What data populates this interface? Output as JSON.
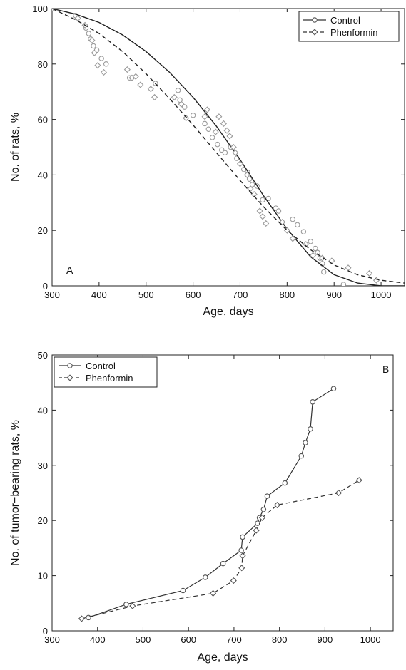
{
  "chart_data": [
    {
      "panel_label": "A",
      "type": "scatter",
      "xlabel": "Age, days",
      "ylabel": "No. of rats, %",
      "xlim": [
        300,
        1050
      ],
      "ylim": [
        0,
        100
      ],
      "x_ticks": [
        300,
        400,
        500,
        600,
        700,
        800,
        900,
        1000
      ],
      "y_ticks": [
        0,
        20,
        40,
        60,
        80,
        100
      ],
      "grid": false,
      "legend": {
        "placement": "top-right",
        "entries": [
          "Control",
          "Phenformin"
        ]
      },
      "colors": {
        "control": "#333333",
        "phenformin": "#333333",
        "points": "#8a8a8a"
      },
      "series": [
        {
          "name": "Control",
          "marker": "circle",
          "line": "solid",
          "points": [
            [
              300,
              100
            ],
            [
              350,
              97.5
            ],
            [
              372,
              93
            ],
            [
              378,
              91
            ],
            [
              382,
              89
            ],
            [
              388,
              86.5
            ],
            [
              395,
              85
            ],
            [
              405,
              82
            ],
            [
              415,
              80
            ],
            [
              465,
              75
            ],
            [
              520,
              73
            ],
            [
              568,
              70.5
            ],
            [
              572,
              67
            ],
            [
              582,
              64.5
            ],
            [
              600,
              61.5
            ],
            [
              625,
              58.5
            ],
            [
              633,
              56.5
            ],
            [
              641,
              53.5
            ],
            [
              652,
              51
            ],
            [
              661,
              49
            ],
            [
              668,
              48
            ],
            [
              680,
              50
            ],
            [
              693,
              46
            ],
            [
              708,
              42
            ],
            [
              716,
              41
            ],
            [
              720,
              38.5
            ],
            [
              726,
              36.5
            ],
            [
              736,
              36
            ],
            [
              748,
              31
            ],
            [
              760,
              31.5
            ],
            [
              776,
              28
            ],
            [
              782,
              27
            ],
            [
              812,
              24
            ],
            [
              822,
              22
            ],
            [
              835,
              19.5
            ],
            [
              850,
              16
            ],
            [
              860,
              13.5
            ],
            [
              865,
              12
            ],
            [
              870,
              10
            ],
            [
              875,
              8
            ],
            [
              878,
              5
            ],
            [
              920,
              0.5
            ]
          ],
          "fit": [
            [
              300,
              100
            ],
            [
              350,
              98
            ],
            [
              400,
              95
            ],
            [
              450,
              90.5
            ],
            [
              500,
              84.5
            ],
            [
              550,
              77
            ],
            [
              600,
              68
            ],
            [
              650,
              57.5
            ],
            [
              700,
              45.5
            ],
            [
              750,
              32.5
            ],
            [
              800,
              20.5
            ],
            [
              850,
              10.5
            ],
            [
              900,
              4
            ],
            [
              950,
              1
            ],
            [
              1000,
              0
            ],
            [
              1050,
              0
            ]
          ]
        },
        {
          "name": "Phenformin",
          "marker": "diamond",
          "line": "dashed",
          "points": [
            [
              355,
              96.5
            ],
            [
              370,
              94
            ],
            [
              385,
              88.5
            ],
            [
              390,
              84
            ],
            [
              397,
              79.5
            ],
            [
              410,
              77
            ],
            [
              460,
              78
            ],
            [
              470,
              75
            ],
            [
              478,
              75.5
            ],
            [
              488,
              72.5
            ],
            [
              510,
              71
            ],
            [
              518,
              68
            ],
            [
              560,
              68
            ],
            [
              575,
              65.5
            ],
            [
              585,
              60.5
            ],
            [
              625,
              61
            ],
            [
              630,
              63.5
            ],
            [
              648,
              55.5
            ],
            [
              655,
              61
            ],
            [
              665,
              58.5
            ],
            [
              672,
              56
            ],
            [
              678,
              54
            ],
            [
              686,
              50
            ],
            [
              690,
              48
            ],
            [
              700,
              44
            ],
            [
              715,
              40
            ],
            [
              722,
              35
            ],
            [
              730,
              33
            ],
            [
              742,
              27
            ],
            [
              748,
              25
            ],
            [
              755,
              22.5
            ],
            [
              790,
              23
            ],
            [
              800,
              20
            ],
            [
              812,
              17
            ],
            [
              840,
              15
            ],
            [
              855,
              11
            ],
            [
              875,
              10
            ],
            [
              895,
              9
            ],
            [
              930,
              6.5
            ],
            [
              975,
              4.5
            ],
            [
              990,
              2
            ]
          ],
          "fit": [
            [
              300,
              100
            ],
            [
              350,
              96
            ],
            [
              400,
              91
            ],
            [
              450,
              84.5
            ],
            [
              500,
              76.5
            ],
            [
              550,
              67.5
            ],
            [
              600,
              58
            ],
            [
              650,
              48
            ],
            [
              700,
              38
            ],
            [
              750,
              28.5
            ],
            [
              800,
              20
            ],
            [
              850,
              13
            ],
            [
              900,
              7.5
            ],
            [
              950,
              4
            ],
            [
              1000,
              2
            ],
            [
              1050,
              1
            ]
          ]
        }
      ]
    },
    {
      "panel_label": "B",
      "type": "line",
      "xlabel": "Age, days",
      "ylabel": "No. of tumor−bearing rats, %",
      "xlim": [
        300,
        1050
      ],
      "ylim": [
        0,
        50
      ],
      "x_ticks": [
        300,
        400,
        500,
        600,
        700,
        800,
        900,
        1000
      ],
      "y_ticks": [
        0,
        10,
        20,
        30,
        40,
        50
      ],
      "grid": false,
      "legend": {
        "placement": "top-left",
        "entries": [
          "Control",
          "Phenformin"
        ]
      },
      "colors": {
        "control": "#333333",
        "phenformin": "#333333"
      },
      "series": [
        {
          "name": "Control",
          "marker": "circle",
          "line": "solid",
          "points": [
            [
              380,
              2.4
            ],
            [
              463,
              4.8
            ],
            [
              588,
              7.3
            ],
            [
              637,
              9.7
            ],
            [
              676,
              12.2
            ],
            [
              716,
              14.6
            ],
            [
              719,
              17
            ],
            [
              752,
              19.5
            ],
            [
              756,
              20.5
            ],
            [
              765,
              22
            ],
            [
              773,
              24.4
            ],
            [
              812,
              26.8
            ],
            [
              848,
              31.7
            ],
            [
              857,
              34.1
            ],
            [
              868,
              36.6
            ],
            [
              873,
              41.5
            ],
            [
              919,
              43.9
            ]
          ]
        },
        {
          "name": "Phenformin",
          "marker": "diamond",
          "line": "dashed",
          "points": [
            [
              365,
              2.2
            ],
            [
              477,
              4.5
            ],
            [
              654,
              6.8
            ],
            [
              699,
              9.1
            ],
            [
              717,
              11.4
            ],
            [
              719,
              13.6
            ],
            [
              749,
              18.2
            ],
            [
              762,
              20.5
            ],
            [
              795,
              22.8
            ],
            [
              930,
              25
            ],
            [
              975,
              27.3
            ]
          ]
        }
      ]
    }
  ]
}
